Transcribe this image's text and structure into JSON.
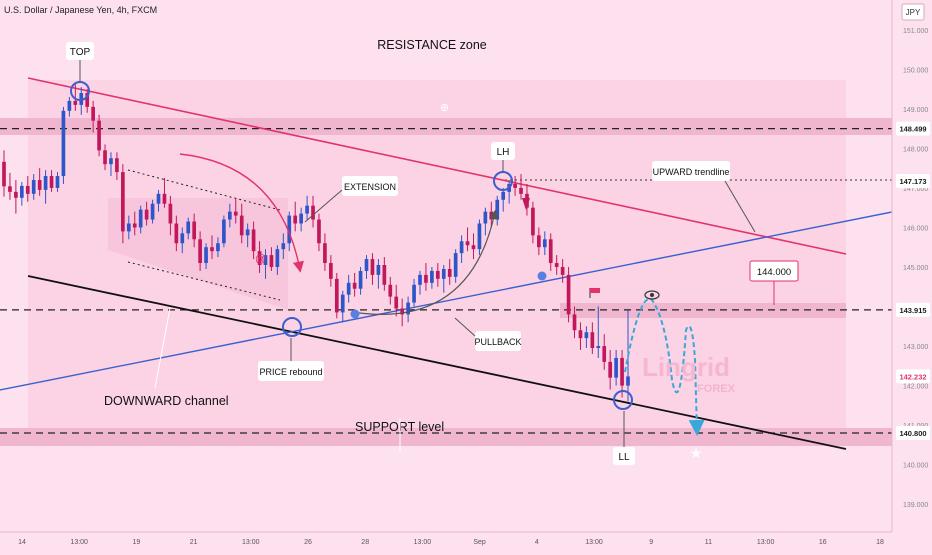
{
  "header": {
    "title": "U.S. Dollar / Japanese Yen, 4h, FXCM",
    "currency": "JPY"
  },
  "chart_data": {
    "type": "candlestick",
    "ylim": [
      138.6,
      151.5
    ],
    "yticks": [
      139.0,
      140.0,
      141.0,
      142.0,
      143.0,
      144.0,
      145.0,
      146.0,
      147.0,
      148.0,
      149.0,
      150.0,
      151.0
    ],
    "xticks": [
      "14",
      "13:00",
      "19",
      "21",
      "13:00",
      "26",
      "28",
      "13:00",
      "Sep",
      "4",
      "13:00",
      "9",
      "11",
      "13:00",
      "16",
      "18"
    ],
    "price_labels": [
      {
        "value": 148.499,
        "text": "148.499",
        "color": "#1a1a1a"
      },
      {
        "value": 147.173,
        "text": "147.173",
        "color": "#1a1a1a"
      },
      {
        "value": 143.915,
        "text": "143.915",
        "color": "#1a1a1a"
      },
      {
        "value": 142.232,
        "text": "142.232",
        "color": "#e2336b"
      },
      {
        "value": 140.8,
        "text": "140.800",
        "color": "#1a1a1a"
      }
    ],
    "levels": [
      148.499,
      143.915,
      140.8
    ],
    "candles": [
      {
        "t": 0,
        "o": 147.66,
        "h": 147.95,
        "l": 146.78,
        "c": 147.04
      },
      {
        "t": 1,
        "o": 147.04,
        "h": 147.38,
        "l": 146.7,
        "c": 146.9
      },
      {
        "t": 2,
        "o": 146.9,
        "h": 147.2,
        "l": 146.35,
        "c": 146.75
      },
      {
        "t": 3,
        "o": 146.75,
        "h": 147.15,
        "l": 146.55,
        "c": 147.05
      },
      {
        "t": 4,
        "o": 147.05,
        "h": 147.3,
        "l": 146.65,
        "c": 146.85
      },
      {
        "t": 5,
        "o": 146.85,
        "h": 147.35,
        "l": 146.7,
        "c": 147.2
      },
      {
        "t": 6,
        "o": 147.2,
        "h": 147.5,
        "l": 146.8,
        "c": 146.95
      },
      {
        "t": 7,
        "o": 146.95,
        "h": 147.45,
        "l": 146.6,
        "c": 147.3
      },
      {
        "t": 8,
        "o": 147.3,
        "h": 147.45,
        "l": 146.9,
        "c": 147.0
      },
      {
        "t": 9,
        "o": 147.0,
        "h": 147.4,
        "l": 146.9,
        "c": 147.3
      },
      {
        "t": 10,
        "o": 147.3,
        "h": 149.05,
        "l": 147.1,
        "c": 148.95
      },
      {
        "t": 11,
        "o": 148.95,
        "h": 149.3,
        "l": 148.8,
        "c": 149.2
      },
      {
        "t": 12,
        "o": 149.2,
        "h": 149.65,
        "l": 148.95,
        "c": 149.1
      },
      {
        "t": 13,
        "o": 149.1,
        "h": 149.55,
        "l": 148.85,
        "c": 149.4
      },
      {
        "t": 14,
        "o": 149.4,
        "h": 149.5,
        "l": 148.9,
        "c": 149.05
      },
      {
        "t": 15,
        "o": 149.05,
        "h": 149.2,
        "l": 148.4,
        "c": 148.7
      },
      {
        "t": 16,
        "o": 148.7,
        "h": 148.85,
        "l": 147.8,
        "c": 147.95
      },
      {
        "t": 17,
        "o": 147.95,
        "h": 148.1,
        "l": 147.45,
        "c": 147.6
      },
      {
        "t": 18,
        "o": 147.6,
        "h": 147.9,
        "l": 147.3,
        "c": 147.75
      },
      {
        "t": 19,
        "o": 147.75,
        "h": 147.9,
        "l": 147.2,
        "c": 147.4
      },
      {
        "t": 20,
        "o": 147.4,
        "h": 147.6,
        "l": 145.6,
        "c": 145.9
      },
      {
        "t": 21,
        "o": 145.9,
        "h": 146.3,
        "l": 145.7,
        "c": 146.1
      },
      {
        "t": 22,
        "o": 146.1,
        "h": 146.4,
        "l": 145.8,
        "c": 146.0
      },
      {
        "t": 23,
        "o": 146.0,
        "h": 146.55,
        "l": 145.85,
        "c": 146.45
      },
      {
        "t": 24,
        "o": 146.45,
        "h": 146.65,
        "l": 146.05,
        "c": 146.2
      },
      {
        "t": 25,
        "o": 146.2,
        "h": 146.7,
        "l": 146.1,
        "c": 146.6
      },
      {
        "t": 26,
        "o": 146.6,
        "h": 146.95,
        "l": 146.4,
        "c": 146.85
      },
      {
        "t": 27,
        "o": 146.85,
        "h": 147.25,
        "l": 146.5,
        "c": 146.6
      },
      {
        "t": 28,
        "o": 146.6,
        "h": 146.8,
        "l": 145.8,
        "c": 146.1
      },
      {
        "t": 29,
        "o": 146.1,
        "h": 146.3,
        "l": 145.4,
        "c": 145.6
      },
      {
        "t": 30,
        "o": 145.6,
        "h": 146.0,
        "l": 145.35,
        "c": 145.85
      },
      {
        "t": 31,
        "o": 145.85,
        "h": 146.25,
        "l": 145.7,
        "c": 146.15
      },
      {
        "t": 32,
        "o": 146.15,
        "h": 146.35,
        "l": 145.5,
        "c": 145.7
      },
      {
        "t": 33,
        "o": 145.7,
        "h": 145.9,
        "l": 144.9,
        "c": 145.1
      },
      {
        "t": 34,
        "o": 145.1,
        "h": 145.6,
        "l": 144.95,
        "c": 145.5
      },
      {
        "t": 35,
        "o": 145.5,
        "h": 145.8,
        "l": 145.2,
        "c": 145.4
      },
      {
        "t": 36,
        "o": 145.4,
        "h": 145.75,
        "l": 145.25,
        "c": 145.6
      },
      {
        "t": 37,
        "o": 145.6,
        "h": 146.3,
        "l": 145.5,
        "c": 146.2
      },
      {
        "t": 38,
        "o": 146.2,
        "h": 146.6,
        "l": 146.0,
        "c": 146.4
      },
      {
        "t": 39,
        "o": 146.4,
        "h": 146.75,
        "l": 146.1,
        "c": 146.3
      },
      {
        "t": 40,
        "o": 146.3,
        "h": 146.6,
        "l": 145.6,
        "c": 145.8
      },
      {
        "t": 41,
        "o": 145.8,
        "h": 146.1,
        "l": 145.5,
        "c": 145.95
      },
      {
        "t": 42,
        "o": 145.95,
        "h": 146.15,
        "l": 145.2,
        "c": 145.4
      },
      {
        "t": 43,
        "o": 145.4,
        "h": 145.65,
        "l": 144.85,
        "c": 145.05
      },
      {
        "t": 44,
        "o": 145.05,
        "h": 145.45,
        "l": 144.7,
        "c": 145.3
      },
      {
        "t": 45,
        "o": 145.3,
        "h": 145.5,
        "l": 144.9,
        "c": 145.0
      },
      {
        "t": 46,
        "o": 145.0,
        "h": 145.55,
        "l": 144.8,
        "c": 145.45
      },
      {
        "t": 47,
        "o": 145.45,
        "h": 145.85,
        "l": 145.2,
        "c": 145.6
      },
      {
        "t": 48,
        "o": 145.6,
        "h": 146.4,
        "l": 145.4,
        "c": 146.3
      },
      {
        "t": 49,
        "o": 146.3,
        "h": 146.65,
        "l": 145.9,
        "c": 146.1
      },
      {
        "t": 50,
        "o": 146.1,
        "h": 146.5,
        "l": 145.9,
        "c": 146.35
      },
      {
        "t": 51,
        "o": 146.35,
        "h": 146.8,
        "l": 146.2,
        "c": 146.55
      },
      {
        "t": 52,
        "o": 146.55,
        "h": 146.8,
        "l": 146.0,
        "c": 146.2
      },
      {
        "t": 53,
        "o": 146.2,
        "h": 146.35,
        "l": 145.4,
        "c": 145.6
      },
      {
        "t": 54,
        "o": 145.6,
        "h": 145.85,
        "l": 144.9,
        "c": 145.1
      },
      {
        "t": 55,
        "o": 145.1,
        "h": 145.3,
        "l": 144.5,
        "c": 144.7
      },
      {
        "t": 56,
        "o": 144.7,
        "h": 144.85,
        "l": 143.7,
        "c": 143.85
      },
      {
        "t": 57,
        "o": 143.85,
        "h": 144.4,
        "l": 143.6,
        "c": 144.3
      },
      {
        "t": 58,
        "o": 144.3,
        "h": 144.8,
        "l": 144.1,
        "c": 144.6
      },
      {
        "t": 59,
        "o": 144.6,
        "h": 144.85,
        "l": 144.25,
        "c": 144.45
      },
      {
        "t": 60,
        "o": 144.45,
        "h": 145.0,
        "l": 144.3,
        "c": 144.9
      },
      {
        "t": 61,
        "o": 144.9,
        "h": 145.3,
        "l": 144.7,
        "c": 145.2
      },
      {
        "t": 62,
        "o": 145.2,
        "h": 145.35,
        "l": 144.55,
        "c": 144.8
      },
      {
        "t": 63,
        "o": 144.8,
        "h": 145.2,
        "l": 144.45,
        "c": 145.05
      },
      {
        "t": 64,
        "o": 145.05,
        "h": 145.25,
        "l": 144.4,
        "c": 144.55
      },
      {
        "t": 65,
        "o": 144.55,
        "h": 144.75,
        "l": 144.05,
        "c": 144.25
      },
      {
        "t": 66,
        "o": 144.25,
        "h": 144.55,
        "l": 143.75,
        "c": 143.95
      },
      {
        "t": 67,
        "o": 143.95,
        "h": 144.2,
        "l": 143.5,
        "c": 143.8
      },
      {
        "t": 68,
        "o": 143.8,
        "h": 144.25,
        "l": 143.6,
        "c": 144.1
      },
      {
        "t": 69,
        "o": 144.1,
        "h": 144.7,
        "l": 144.0,
        "c": 144.55
      },
      {
        "t": 70,
        "o": 144.55,
        "h": 144.9,
        "l": 144.3,
        "c": 144.8
      },
      {
        "t": 71,
        "o": 144.8,
        "h": 145.1,
        "l": 144.4,
        "c": 144.6
      },
      {
        "t": 72,
        "o": 144.6,
        "h": 145.0,
        "l": 144.45,
        "c": 144.9
      },
      {
        "t": 73,
        "o": 144.9,
        "h": 145.1,
        "l": 144.5,
        "c": 144.7
      },
      {
        "t": 74,
        "o": 144.7,
        "h": 145.05,
        "l": 144.35,
        "c": 144.95
      },
      {
        "t": 75,
        "o": 144.95,
        "h": 145.2,
        "l": 144.55,
        "c": 144.75
      },
      {
        "t": 76,
        "o": 144.75,
        "h": 145.45,
        "l": 144.6,
        "c": 145.35
      },
      {
        "t": 77,
        "o": 145.35,
        "h": 145.8,
        "l": 145.1,
        "c": 145.65
      },
      {
        "t": 78,
        "o": 145.65,
        "h": 146.0,
        "l": 145.4,
        "c": 145.55
      },
      {
        "t": 79,
        "o": 145.55,
        "h": 145.85,
        "l": 145.2,
        "c": 145.45
      },
      {
        "t": 80,
        "o": 145.45,
        "h": 146.2,
        "l": 145.3,
        "c": 146.1
      },
      {
        "t": 81,
        "o": 146.1,
        "h": 146.5,
        "l": 145.8,
        "c": 146.4
      },
      {
        "t": 82,
        "o": 146.4,
        "h": 146.65,
        "l": 146.0,
        "c": 146.2
      },
      {
        "t": 83,
        "o": 146.2,
        "h": 146.8,
        "l": 146.05,
        "c": 146.7
      },
      {
        "t": 84,
        "o": 146.7,
        "h": 147.0,
        "l": 146.4,
        "c": 146.9
      },
      {
        "t": 85,
        "o": 146.9,
        "h": 147.2,
        "l": 146.6,
        "c": 147.1
      },
      {
        "t": 86,
        "o": 147.1,
        "h": 147.3,
        "l": 146.8,
        "c": 147.0
      },
      {
        "t": 87,
        "o": 147.0,
        "h": 147.35,
        "l": 146.7,
        "c": 146.85
      },
      {
        "t": 88,
        "o": 146.85,
        "h": 147.1,
        "l": 146.3,
        "c": 146.5
      },
      {
        "t": 89,
        "o": 146.5,
        "h": 146.65,
        "l": 145.6,
        "c": 145.8
      },
      {
        "t": 90,
        "o": 145.8,
        "h": 146.0,
        "l": 145.3,
        "c": 145.5
      },
      {
        "t": 91,
        "o": 145.5,
        "h": 145.9,
        "l": 145.3,
        "c": 145.7
      },
      {
        "t": 92,
        "o": 145.7,
        "h": 145.85,
        "l": 144.9,
        "c": 145.1
      },
      {
        "t": 93,
        "o": 145.1,
        "h": 145.3,
        "l": 144.8,
        "c": 145.0
      },
      {
        "t": 94,
        "o": 145.0,
        "h": 145.2,
        "l": 144.6,
        "c": 144.8
      },
      {
        "t": 95,
        "o": 144.8,
        "h": 145.0,
        "l": 143.6,
        "c": 143.8
      },
      {
        "t": 96,
        "o": 143.8,
        "h": 144.0,
        "l": 143.2,
        "c": 143.4
      },
      {
        "t": 97,
        "o": 143.4,
        "h": 143.6,
        "l": 142.9,
        "c": 143.2
      },
      {
        "t": 98,
        "o": 143.2,
        "h": 143.5,
        "l": 142.95,
        "c": 143.35
      },
      {
        "t": 99,
        "o": 143.35,
        "h": 143.6,
        "l": 142.8,
        "c": 142.95
      },
      {
        "t": 100,
        "o": 142.95,
        "h": 144.0,
        "l": 142.7,
        "c": 143.0
      },
      {
        "t": 101,
        "o": 143.0,
        "h": 143.3,
        "l": 142.4,
        "c": 142.6
      },
      {
        "t": 102,
        "o": 142.6,
        "h": 142.9,
        "l": 141.9,
        "c": 142.2
      },
      {
        "t": 103,
        "o": 142.2,
        "h": 142.9,
        "l": 142.0,
        "c": 142.7
      },
      {
        "t": 104,
        "o": 142.7,
        "h": 142.9,
        "l": 141.7,
        "c": 142.0
      },
      {
        "t": 105,
        "o": 142.0,
        "h": 143.9,
        "l": 141.6,
        "c": 142.232
      }
    ]
  },
  "annotations": {
    "top": "TOP",
    "resistance_zone": "RESISTANCE zone",
    "lh": "LH",
    "upward_trendline": "UPWARD trendline",
    "extension": "EXTENSION",
    "price_box": "144.000",
    "pullback": "PULLBACK",
    "price_rebound": "PRICE rebound",
    "downward_channel": "DOWNWARD channel",
    "ll": "LL",
    "support_level": "SUPPORT level",
    "watermark_line1": "Lingrid",
    "watermark_line2": "FOREX"
  },
  "colors": {
    "background": "#fde1ee",
    "band": "#f0b6d0",
    "candle_up": "#2f56c9",
    "candle_down": "#c2185b",
    "resistance_line": "#e2336b",
    "trendline": "#3b5fcf",
    "channel_support": "#111111",
    "projection": "#38a8d8"
  }
}
